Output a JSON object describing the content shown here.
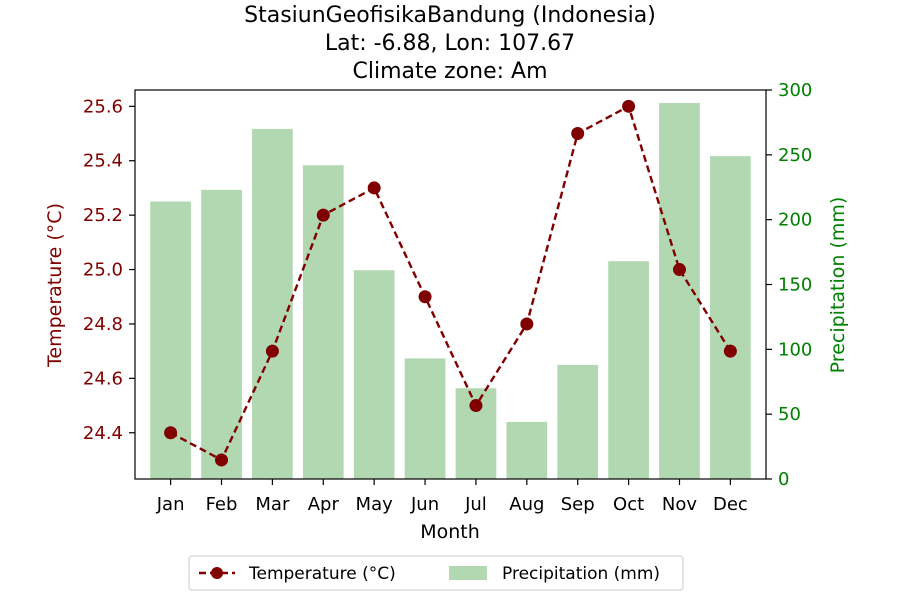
{
  "chart_data": {
    "type": "bar+line",
    "title": [
      "StasiunGeofisikaBandung (Indonesia)",
      "Lat: -6.88, Lon: 107.67",
      "Climate zone: Am"
    ],
    "xlabel": "Month",
    "ylabel_left": "Temperature (°C)",
    "ylabel_right": "Precipitation (mm)",
    "categories": [
      "Jan",
      "Feb",
      "Mar",
      "Apr",
      "May",
      "Jun",
      "Jul",
      "Aug",
      "Sep",
      "Oct",
      "Nov",
      "Dec"
    ],
    "temperature": {
      "name": "Temperature (°C)",
      "values": [
        24.4,
        24.3,
        24.7,
        25.2,
        25.3,
        24.9,
        24.5,
        24.8,
        25.5,
        25.6,
        25.0,
        24.7
      ],
      "color": "#800000",
      "ylim": [
        24.23,
        25.66
      ],
      "ticks": [
        24.4,
        24.6,
        24.8,
        25.0,
        25.2,
        25.4,
        25.6
      ]
    },
    "precipitation": {
      "name": "Precipitation (mm)",
      "values": [
        214,
        223,
        270,
        242,
        161,
        93,
        70,
        44,
        88,
        168,
        290,
        249
      ],
      "color": "#b2d8b2",
      "ylim": [
        0,
        300
      ],
      "ticks": [
        0,
        50,
        100,
        150,
        200,
        250,
        300
      ]
    },
    "left_axis_color": "#800000",
    "right_axis_color": "#008000",
    "legend_position": "bottom-center"
  }
}
